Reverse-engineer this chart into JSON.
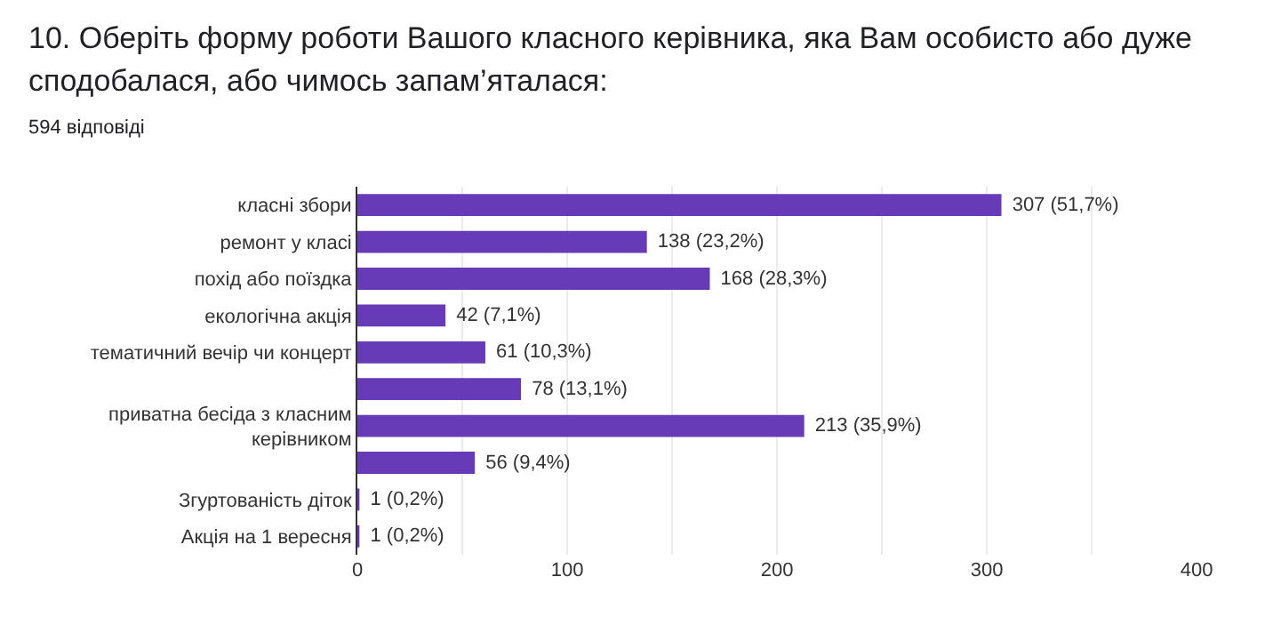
{
  "chart_data": {
    "type": "bar",
    "orientation": "horizontal",
    "title": "10. Оберіть форму роботи Вашого класного керівника, яка Вам особисто або дуже сподобалася, або чимось запам’яталася:",
    "subtitle": "594 відповіді",
    "categories": [
      "класні збори",
      "ремонт у класі",
      "похід або поїздка",
      "екологічна акція",
      "тематичний вечір чи концерт",
      null,
      "приватна бесіда з класним керівником",
      null,
      "Згуртованість діток",
      "Акція на 1 вересня"
    ],
    "values": [
      307,
      138,
      168,
      42,
      61,
      78,
      213,
      56,
      1,
      1
    ],
    "value_labels": [
      "307 (51,7%)",
      "138 (23,2%)",
      "168 (28,3%)",
      "42 (7,1%)",
      "61 (10,3%)",
      "78 (13,1%)",
      "213 (35,9%)",
      "56 (9,4%)",
      "1 (0,2%)",
      "1 (0,2%)"
    ],
    "color": "#673ab7",
    "xlim": [
      0,
      400
    ],
    "xticks": [
      0,
      {
        "value": 50,
        "label": null
      },
      100,
      {
        "value": 150,
        "label": null
      },
      200,
      {
        "value": 250,
        "label": null
      },
      300,
      {
        "value": 350,
        "label": null
      },
      400
    ],
    "grid": "x",
    "legend": false
  }
}
